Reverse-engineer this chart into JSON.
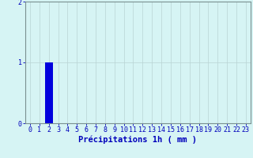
{
  "hours": [
    0,
    1,
    2,
    3,
    4,
    5,
    6,
    7,
    8,
    9,
    10,
    11,
    12,
    13,
    14,
    15,
    16,
    17,
    18,
    19,
    20,
    21,
    22,
    23
  ],
  "values": [
    0,
    0,
    1,
    0,
    0,
    0,
    0,
    0,
    0,
    0,
    0,
    0,
    0,
    0,
    0,
    0,
    0,
    0,
    0,
    0,
    0,
    0,
    0,
    0
  ],
  "bar_color": "#0000dd",
  "background_color": "#d6f4f4",
  "grid_color": "#b8d4d4",
  "axis_color": "#7a9090",
  "text_color": "#0000bb",
  "xlabel": "Précipitations 1h ( mm )",
  "ylim": [
    0,
    2
  ],
  "yticks": [
    0,
    1,
    2
  ],
  "xlim": [
    -0.5,
    23.5
  ],
  "xlabel_fontsize": 7.5,
  "tick_fontsize": 6.0
}
